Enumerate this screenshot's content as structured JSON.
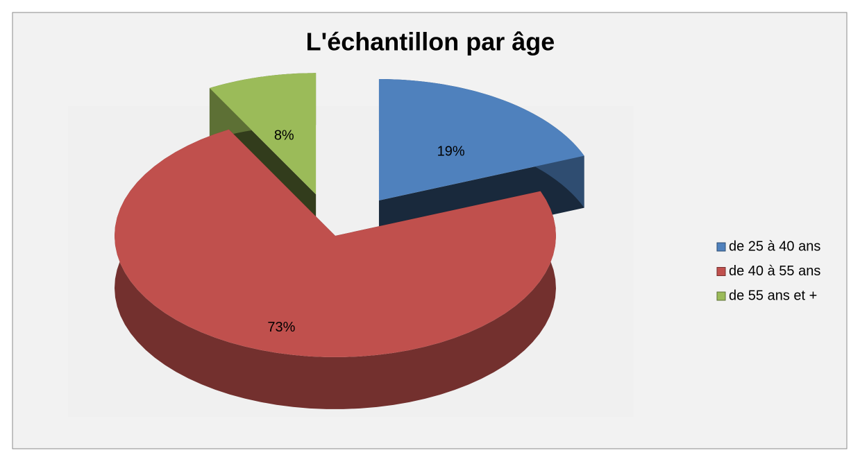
{
  "chart_data": {
    "type": "pie",
    "title": "L'échantillon par âge",
    "categories": [
      "de 25 à 40 ans",
      "de 40 à 55 ans",
      "de 55 ans et +"
    ],
    "values": [
      19,
      73,
      8
    ],
    "value_labels": [
      "19%",
      "73%",
      "8%"
    ],
    "colors": [
      "#4f81bd",
      "#c0504d",
      "#9bbb59"
    ],
    "legend": "right"
  }
}
